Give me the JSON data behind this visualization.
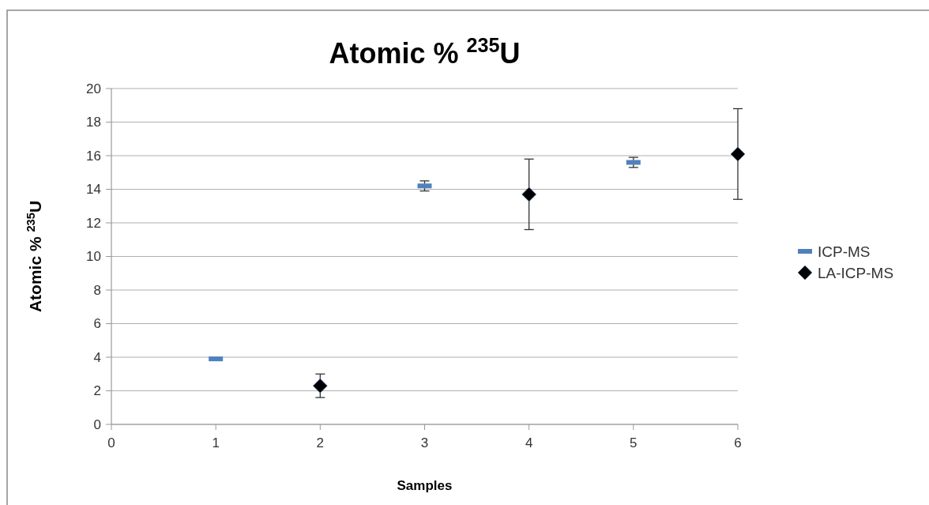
{
  "chart_data": {
    "type": "scatter",
    "title": "Atomic % $^{235}$U",
    "xlabel": "Samples",
    "ylabel": "Atomic % $^{235}$U",
    "series": [
      {
        "name": "ICP-MS",
        "color": "#4f81bd",
        "marker": "square",
        "x": [
          1,
          3,
          5
        ],
        "values": [
          3.9,
          14.2,
          15.6
        ],
        "errors": [
          null,
          0.3,
          0.3
        ]
      },
      {
        "name": "LA-ICP-MS",
        "color": "#000000",
        "marker": "diamond",
        "x": [
          2,
          4,
          6
        ],
        "values": [
          2.3,
          13.7,
          16.1
        ],
        "errors": [
          0.7,
          2.1,
          2.7
        ]
      }
    ],
    "xlim": [
      0,
      6
    ],
    "xticks": [
      0,
      1,
      2,
      3,
      4,
      5,
      6
    ],
    "ylim": [
      0,
      20
    ],
    "yticks": [
      0,
      2,
      4,
      6,
      8,
      10,
      12,
      14,
      16,
      18,
      20
    ],
    "grid": "y",
    "legend": "right"
  }
}
